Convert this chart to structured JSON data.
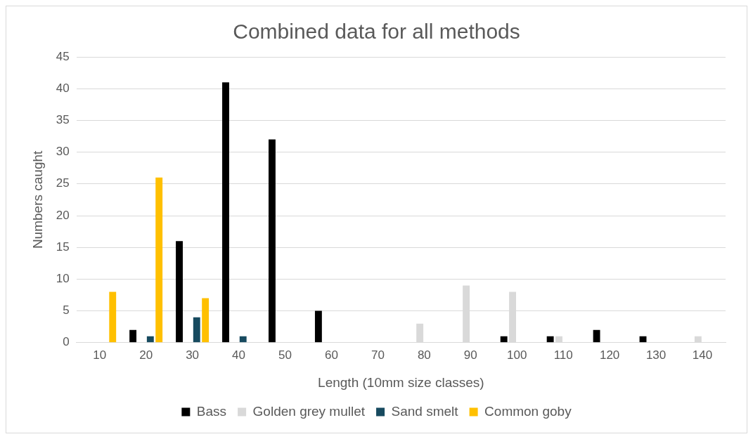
{
  "chart_data": {
    "type": "bar",
    "title": "Combined data for all methods",
    "xlabel": "Length (10mm size classes)",
    "ylabel": "Numbers caught",
    "categories": [
      "10",
      "20",
      "30",
      "40",
      "50",
      "60",
      "70",
      "80",
      "90",
      "100",
      "110",
      "120",
      "130",
      "140"
    ],
    "series": [
      {
        "name": "Bass",
        "color": "#000000",
        "values": [
          null,
          2,
          16,
          41,
          32,
          5,
          null,
          null,
          null,
          1,
          1,
          2,
          1,
          null
        ]
      },
      {
        "name": "Golden grey mullet",
        "color": "#d9d9d9",
        "values": [
          null,
          null,
          null,
          null,
          null,
          null,
          null,
          3,
          9,
          8,
          1,
          null,
          null,
          1
        ]
      },
      {
        "name": "Sand smelt",
        "color": "#174a5f",
        "values": [
          null,
          1,
          4,
          1,
          null,
          null,
          null,
          null,
          null,
          null,
          null,
          null,
          null,
          null
        ]
      },
      {
        "name": "Common goby",
        "color": "#ffc000",
        "values": [
          8,
          26,
          7,
          null,
          null,
          null,
          null,
          null,
          null,
          null,
          null,
          null,
          null,
          null
        ]
      }
    ],
    "ylim": [
      0,
      45
    ],
    "yticks": [
      0,
      5,
      10,
      15,
      20,
      25,
      30,
      35,
      40,
      45
    ],
    "grid": "y",
    "legend": "bottom"
  }
}
